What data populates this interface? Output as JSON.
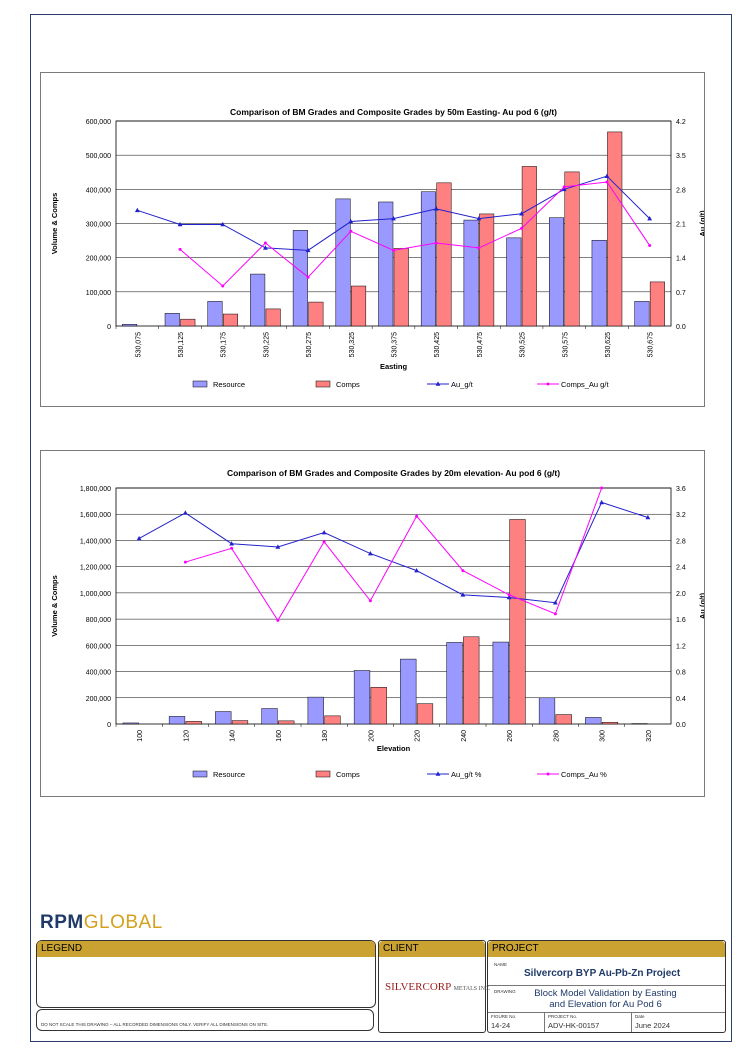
{
  "charts": [
    {
      "chart_data": {
        "type": "bar",
        "title": "Comparison of  BM Grades and Composite Grades by 50m Easting- Au pod 6  (g/t)",
        "xlabel": "Easting",
        "ylabel": "Volume & Comps",
        "y2label": "Au (g/t)",
        "categories": [
          "530,075",
          "530,125",
          "530,175",
          "530,225",
          "530,275",
          "530,325",
          "530,375",
          "530,425",
          "530,475",
          "530,525",
          "530,575",
          "530,625",
          "530,675"
        ],
        "ylim": [
          0,
          600000
        ],
        "y2lim": [
          0,
          4.2
        ],
        "yticks": [
          "0",
          "100,000",
          "200,000",
          "300,000",
          "400,000",
          "500,000",
          "600,000"
        ],
        "y2ticks": [
          "0.0",
          "0.7",
          "1.4",
          "2.1",
          "2.8",
          "3.5",
          "4.2"
        ],
        "series": [
          {
            "name": "Resource",
            "kind": "bar",
            "color": "#9999ff",
            "values": [
              5000,
              37000,
              72000,
              152000,
              280000,
              372000,
              363000,
              393000,
              310000,
              258000,
              317000,
              251000,
              72000
            ]
          },
          {
            "name": "Comps",
            "kind": "bar",
            "color": "#ff8080",
            "values": [
              0,
              20000,
              35000,
              50000,
              70000,
              117000,
              227000,
              419000,
              328000,
              467000,
              451000,
              568000,
              129000
            ]
          },
          {
            "name": "Au_g/t",
            "kind": "line",
            "axis": "y2",
            "color": "#2222cc",
            "marker": "triangle",
            "values": [
              2.37,
              2.08,
              2.08,
              1.6,
              1.55,
              2.14,
              2.2,
              2.4,
              2.2,
              2.3,
              2.8,
              3.07,
              2.2
            ]
          },
          {
            "name": "Comps_Au g/t",
            "kind": "line",
            "axis": "y2",
            "color": "#ff00ff",
            "marker": "dot",
            "values": [
              null,
              1.57,
              0.82,
              1.7,
              1.0,
              1.94,
              1.55,
              1.7,
              1.6,
              2.0,
              2.85,
              2.95,
              1.65
            ]
          }
        ],
        "grid": true,
        "legend": "bottom"
      }
    },
    {
      "chart_data": {
        "type": "bar",
        "title": "Comparison of  BM Grades and Composite Grades by 20m elevation- Au pod 6  (g/t)",
        "xlabel": "Elevation",
        "ylabel": "Volume & Comps",
        "y2label": "Au (g/t)",
        "categories": [
          "100",
          "120",
          "140",
          "160",
          "180",
          "200",
          "220",
          "240",
          "260",
          "280",
          "300",
          "320"
        ],
        "ylim": [
          0,
          1800000
        ],
        "y2lim": [
          0,
          3.6
        ],
        "yticks": [
          "0",
          "200,000",
          "400,000",
          "600,000",
          "800,000",
          "1,000,000",
          "1,200,000",
          "1,400,000",
          "1,600,000",
          "1,800,000"
        ],
        "y2ticks": [
          "0.0",
          "0.4",
          "0.8",
          "1.2",
          "1.6",
          "2.0",
          "2.4",
          "2.8",
          "3.2",
          "3.6"
        ],
        "series": [
          {
            "name": "Resource",
            "kind": "bar",
            "color": "#9999ff",
            "values": [
              8000,
              58000,
              95000,
              118000,
              205000,
              408000,
              495000,
              622000,
              625000,
              200000,
              50000,
              3000
            ]
          },
          {
            "name": "Comps",
            "kind": "bar",
            "color": "#ff8080",
            "values": [
              0,
              20000,
              26000,
              24000,
              62000,
              280000,
              155000,
              665000,
              1560000,
              72000,
              13000,
              0
            ]
          },
          {
            "name": "Au_g/t %",
            "kind": "line",
            "axis": "y2",
            "color": "#2222cc",
            "marker": "triangle",
            "values": [
              2.83,
              3.22,
              2.75,
              2.7,
              2.92,
              2.6,
              2.34,
              1.97,
              1.93,
              1.85,
              3.38,
              3.15
            ]
          },
          {
            "name": "Comps_Au %",
            "kind": "line",
            "axis": "y2",
            "color": "#ff00ff",
            "marker": "dot",
            "values": [
              null,
              2.47,
              2.68,
              1.58,
              2.78,
              1.88,
              3.17,
              2.34,
              1.97,
              1.68,
              3.6,
              null
            ]
          }
        ],
        "grid": true,
        "legend": "bottom"
      }
    }
  ],
  "branding": {
    "rpm": "RPM",
    "global": "GLOBAL"
  },
  "legend_box": {
    "header": "LEGEND",
    "note": "DO NOT SCALE THIS DRAWING – ALL RECORDED DIMENSIONS ONLY. VERIFY ALL DIMENSIONS ON SITE."
  },
  "client": {
    "header": "CLIENT",
    "logo_main": "SILVERCORP",
    "logo_sub": "METALS INC."
  },
  "project": {
    "header": "PROJECT",
    "name_label": "NAME",
    "name": "Silvercorp BYP Au-Pb-Zn Project",
    "drawing_label": "DRAWING",
    "drawing_line1": "Block Model Validation by Easting",
    "drawing_line2": "and Elevation for Au Pod 6",
    "figure_label": "FIGURE No.",
    "figure": "14-24",
    "project_no_label": "PROJECT No.",
    "project_no": "ADV-HK-00157",
    "date_label": "Date",
    "date": "June 2024"
  }
}
